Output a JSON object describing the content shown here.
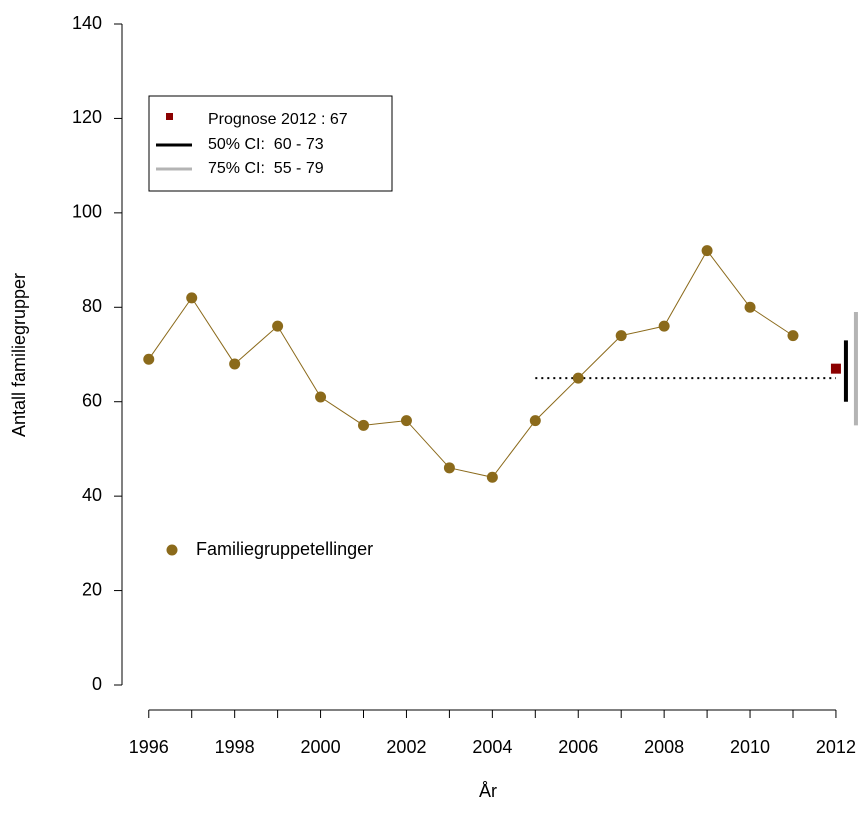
{
  "chart_data": {
    "type": "line",
    "x_label": "År",
    "y_label": "Antall familiegrupper",
    "x": [
      1996,
      1997,
      1998,
      1999,
      2000,
      2001,
      2002,
      2003,
      2004,
      2005,
      2006,
      2007,
      2008,
      2009,
      2010,
      2011
    ],
    "series": [
      {
        "name": "Familiegruppetellinger",
        "color": "#8b6a1b",
        "values": [
          69,
          82,
          68,
          76,
          61,
          55,
          56,
          46,
          44,
          56,
          65,
          74,
          76,
          92,
          80,
          74
        ]
      }
    ],
    "prognosis": {
      "label": "Prognose 2012 : 67",
      "x": 2012,
      "value": 67,
      "color": "#8b0000"
    },
    "intervals": [
      {
        "label": "50% CI:  60 - 73",
        "low": 60,
        "high": 73,
        "color": "#000000"
      },
      {
        "label": "75% CI:  55 - 79",
        "low": 55,
        "high": 79,
        "color": "#b4b4b4"
      }
    ],
    "reference_line": {
      "value": 65,
      "x": [
        2005,
        2012
      ]
    },
    "xlim": [
      1995.4,
      2012.7
    ],
    "ylim": [
      0,
      140
    ],
    "xticks": [
      1996,
      1998,
      2000,
      2002,
      2004,
      2006,
      2008,
      2010,
      2012
    ],
    "xminor_ticks": [
      1997,
      1999,
      2001,
      2003,
      2005,
      2007,
      2009,
      2011
    ],
    "yticks": [
      0,
      20,
      40,
      60,
      80,
      100,
      120,
      140
    ]
  }
}
